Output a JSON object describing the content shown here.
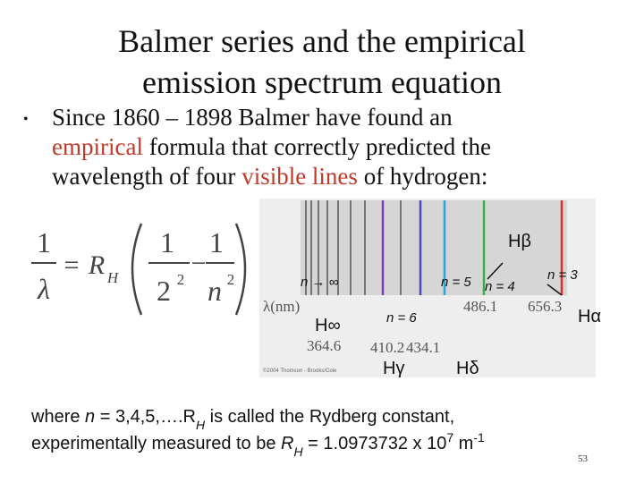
{
  "title": [
    "Balmer series and the empirical",
    "emission spectrum equation"
  ],
  "bullet": {
    "marker": "•",
    "highlight_color": "#c0392b",
    "lines": [
      [
        {
          "text": "Since 1860 – 1898 Balmer have found an"
        }
      ],
      [
        {
          "text": "empirical",
          "highlight": true
        },
        {
          "text": " formula that correctly predicted the"
        }
      ],
      [
        {
          "text": "wavelength of four "
        },
        {
          "text": "visible lines",
          "highlight": true
        },
        {
          "text": " of hydrogen:"
        }
      ]
    ]
  },
  "formula": {
    "lhs_num": "1",
    "lhs_den": "λ",
    "equals": "=",
    "r": "R",
    "r_sub": "H",
    "f1_num": "1",
    "f1_den": "2",
    "f1_exp": "2",
    "minus": "−",
    "f2_num": "1",
    "f2_den": "n",
    "f2_exp": "2"
  },
  "spectrum": {
    "h_beta": "Hβ",
    "n_inf": "n → ∞",
    "n5": "n = 5",
    "n4": "n = 4",
    "n3": "n = 3",
    "unit": "λ(nm)",
    "w486": "486.1",
    "w656": "656.3",
    "h_inf": "H∞",
    "n6": "n = 6",
    "h_alpha": "Hα",
    "w364": "364.6",
    "w410": "410.2",
    "w434": "434.1",
    "h_gamma": "Hγ",
    "h_delta": "Hδ",
    "credit": "©2004 Thomson - Brooks/Cole"
  },
  "footer": {
    "lines": [
      [
        {
          "text": "where "
        },
        {
          "text": "n",
          "style": "italic"
        },
        {
          "text": " = 3,4,5,….R"
        },
        {
          "text": "H",
          "style": "sub"
        },
        {
          "text": " is called the Rydberg constant,"
        }
      ],
      [
        {
          "text": "experimentally measured to be "
        },
        {
          "text": "R",
          "style": "italic"
        },
        {
          "text": "H",
          "style": "sub"
        },
        {
          "text": " = 1.0973732 x 10"
        },
        {
          "text": "7",
          "style": "sup"
        },
        {
          "text": " m"
        },
        {
          "text": "-1",
          "style": "sup"
        }
      ]
    ]
  },
  "page_number": "53"
}
